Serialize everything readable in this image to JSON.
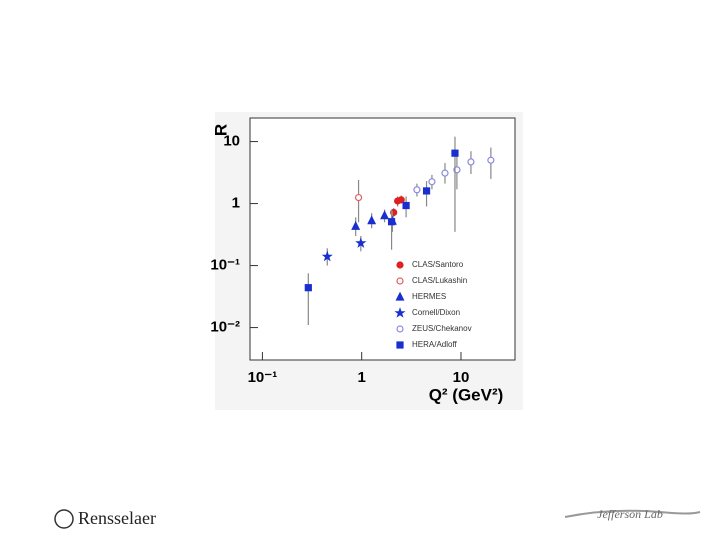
{
  "chart_data": {
    "type": "scatter",
    "xlabel": "Q² (GeV²)",
    "ylabel": "R",
    "log_x": true,
    "log_y": true,
    "xlim": [
      0.075,
      35
    ],
    "ylim": [
      0.003,
      24
    ],
    "xticks": [
      {
        "value": 0.1,
        "label": "10⁻¹"
      },
      1,
      10
    ],
    "yticks": [
      {
        "value": 0.01,
        "label": "10⁻²"
      },
      {
        "value": 0.1,
        "label": "10⁻¹"
      },
      1,
      10
    ],
    "legend": "lower right",
    "series": [
      {
        "name": "CLAS/Santoro",
        "color": "#e02020",
        "marker": "circle",
        "x": [
          2.1,
          2.3,
          2.5
        ],
        "values": [
          0.72,
          1.1,
          1.15
        ],
        "lower": [
          0.6,
          0.9,
          1.0
        ],
        "upper": [
          0.85,
          1.3,
          1.35
        ]
      },
      {
        "name": "CLAS/Lukashin",
        "color": "#e06060",
        "marker": "open-circle",
        "x": [
          0.93
        ],
        "values": [
          1.25
        ],
        "lower": [
          0.5
        ],
        "upper": [
          2.4
        ]
      },
      {
        "name": "HERMES",
        "color": "#1a2fd0",
        "marker": "triangle",
        "x": [
          0.87,
          1.26,
          1.7,
          2.04
        ],
        "values": [
          0.43,
          0.53,
          0.64,
          0.52
        ],
        "lower": [
          0.3,
          0.4,
          0.5,
          0.35
        ],
        "upper": [
          0.6,
          0.7,
          0.8,
          0.75
        ]
      },
      {
        "name": "Cornell/Dixon",
        "color": "#1a2fd0",
        "marker": "star",
        "x": [
          0.45,
          0.98
        ],
        "values": [
          0.14,
          0.23
        ],
        "lower": [
          0.1,
          0.17
        ],
        "upper": [
          0.19,
          0.3
        ]
      },
      {
        "name": "ZEUS/Chekanov",
        "color": "#8a8ae0",
        "marker": "open-circle",
        "x": [
          3.6,
          5.1,
          6.9,
          9.1,
          12.6,
          20
        ],
        "values": [
          1.67,
          2.25,
          3.1,
          3.5,
          4.7,
          5.0
        ],
        "lower": [
          1.3,
          1.7,
          2.1,
          1.7,
          3,
          2.5
        ],
        "upper": [
          2.1,
          2.9,
          4.5,
          6,
          7,
          8
        ]
      },
      {
        "name": "HERA/Adloff",
        "color": "#1a2fd0",
        "marker": "square",
        "x": [
          0.29,
          2.0,
          2.8,
          4.5,
          8.7
        ],
        "values": [
          0.044,
          0.51,
          0.93,
          1.6,
          6.5
        ],
        "lower": [
          0.011,
          0.18,
          0.6,
          0.9,
          0.35
        ],
        "upper": [
          0.075,
          0.8,
          1.3,
          2.3,
          12
        ]
      }
    ]
  },
  "logos": {
    "left": "Rensselaer",
    "right": "Jefferson Lab"
  }
}
